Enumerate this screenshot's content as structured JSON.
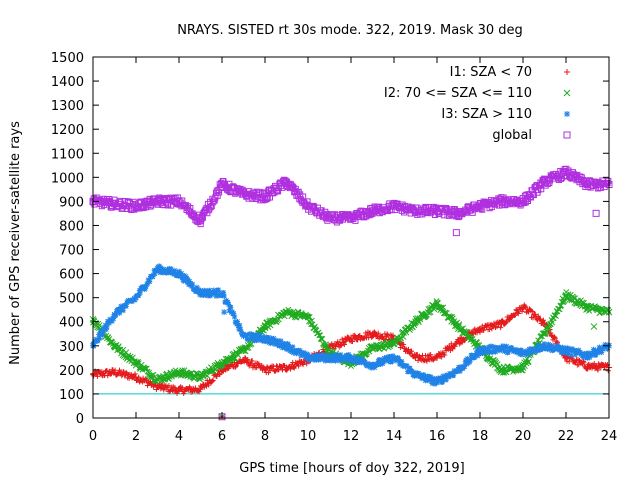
{
  "chart_data": {
    "type": "scatter",
    "title": "NRAYS. SISTED rt 30s mode. 322, 2019. Mask 30 deg",
    "xlabel": "GPS time [hours of doy 322, 2019]",
    "ylabel": "Number of GPS receiver-satellite rays",
    "xlim": [
      0,
      24
    ],
    "ylim": [
      0,
      1500
    ],
    "xticks": [
      "0",
      "2",
      "4",
      "6",
      "8",
      "10",
      "12",
      "14",
      "16",
      "18",
      "20",
      "22",
      "24"
    ],
    "yticks": [
      "0",
      "100",
      "200",
      "300",
      "400",
      "500",
      "600",
      "700",
      "800",
      "900",
      "1000",
      "1100",
      "1200",
      "1300",
      "1400",
      "1500"
    ],
    "reference_line": {
      "y": 100,
      "color": "#00c8c8"
    },
    "legend_position": "top-right",
    "series": [
      {
        "name": "I1: SZA < 70",
        "marker": "+",
        "color": "#e41a1c",
        "x": [
          0,
          1,
          2,
          3,
          4,
          5,
          6,
          7,
          8,
          9,
          10,
          11,
          12,
          13,
          14,
          15,
          16,
          17,
          18,
          19,
          20,
          21,
          22,
          23,
          24
        ],
        "y": [
          180,
          190,
          170,
          130,
          115,
          120,
          200,
          240,
          200,
          210,
          240,
          290,
          330,
          350,
          330,
          250,
          250,
          320,
          370,
          390,
          460,
          390,
          250,
          215,
          210
        ]
      },
      {
        "name": "I2: 70 <= SZA <= 110",
        "marker": "x",
        "color": "#1faa1f",
        "x": [
          0,
          1,
          2,
          3,
          4,
          5,
          6,
          7,
          8,
          9,
          10,
          11,
          12,
          13,
          14,
          15,
          16,
          17,
          18,
          19,
          20,
          21,
          22,
          23,
          24
        ],
        "y": [
          410,
          300,
          230,
          160,
          190,
          170,
          230,
          280,
          380,
          440,
          420,
          270,
          230,
          290,
          310,
          400,
          475,
          380,
          290,
          200,
          210,
          350,
          510,
          460,
          440
        ]
      },
      {
        "name": "I3: SZA > 110",
        "marker": "*",
        "color": "#1e82e6",
        "x": [
          0,
          1,
          2,
          3,
          4,
          5,
          6,
          7,
          8,
          9,
          10,
          11,
          12,
          13,
          14,
          15,
          16,
          17,
          18,
          19,
          20,
          21,
          22,
          23,
          24
        ],
        "y": [
          300,
          430,
          500,
          620,
          600,
          520,
          520,
          340,
          330,
          300,
          250,
          250,
          250,
          220,
          250,
          180,
          150,
          200,
          280,
          290,
          270,
          300,
          280,
          260,
          300
        ]
      },
      {
        "name": "global",
        "marker": "square",
        "color": "#b030e0",
        "x": [
          0,
          1,
          2,
          3,
          4,
          5,
          6,
          7,
          8,
          9,
          10,
          11,
          12,
          13,
          14,
          15,
          16,
          17,
          18,
          19,
          20,
          21,
          22,
          23,
          24
        ],
        "y": [
          900,
          890,
          880,
          900,
          900,
          820,
          970,
          930,
          920,
          980,
          880,
          830,
          830,
          860,
          880,
          860,
          860,
          850,
          880,
          900,
          900,
          980,
          1020,
          970,
          970
        ]
      }
    ],
    "outliers": [
      {
        "series": 0,
        "x": 6.0,
        "y": 5
      },
      {
        "series": 1,
        "x": 6.0,
        "y": 5
      },
      {
        "series": 3,
        "x": 6.0,
        "y": 5
      },
      {
        "series": 3,
        "x": 16.9,
        "y": 770
      },
      {
        "series": 3,
        "x": 23.4,
        "y": 850
      },
      {
        "series": 2,
        "x": 6.1,
        "y": 440
      },
      {
        "series": 1,
        "x": 23.3,
        "y": 380
      }
    ]
  }
}
